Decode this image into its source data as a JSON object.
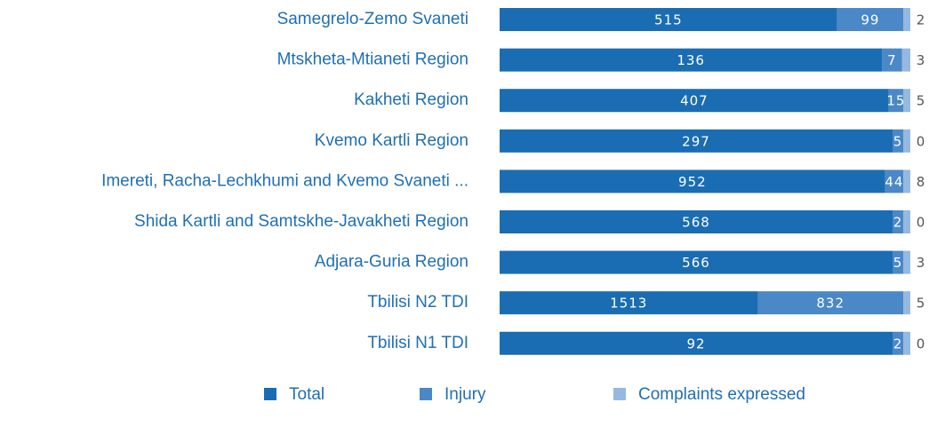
{
  "chart_data": {
    "type": "bar",
    "orientation": "horizontal",
    "stacked": "percent",
    "categories": [
      "Samegrelo-Zemo Svaneti",
      "Mtskheta-Mtianeti Region",
      "Kakheti Region",
      "Kvemo Kartli Region",
      "Imereti, Racha-Lechkhumi and Kvemo Svaneti ...",
      "Shida Kartli and Samtskhe-Javakheti Region",
      "Adjara-Guria Region",
      "Tbilisi N2 TDI",
      "Tbilisi N1 TDI"
    ],
    "series": [
      {
        "name": "Total",
        "color": "#1a6db3",
        "values": [
          515,
          136,
          407,
          297,
          952,
          568,
          566,
          1513,
          92
        ]
      },
      {
        "name": "Injury",
        "color": "#4a88c7",
        "values": [
          99,
          7,
          15,
          5,
          44,
          2,
          5,
          832,
          2
        ]
      },
      {
        "name": "Complaints expressed",
        "color": "#95b9e0",
        "values": [
          2,
          3,
          5,
          0,
          8,
          0,
          3,
          5,
          0
        ]
      }
    ],
    "legend": "bottom"
  }
}
